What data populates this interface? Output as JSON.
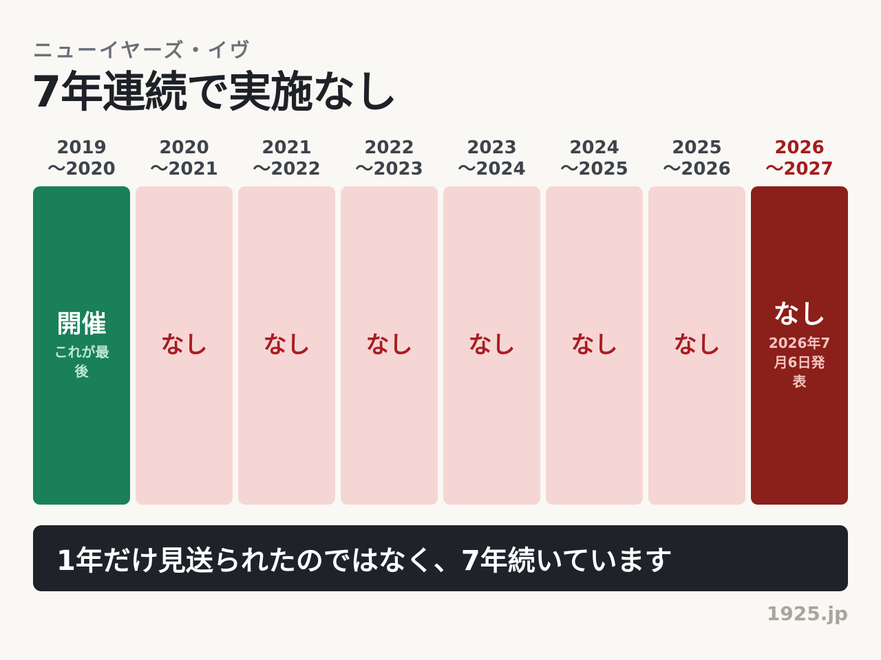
{
  "header": {
    "subtitle": "ニューイヤーズ・イヴ",
    "title": "7年連続で実施なし"
  },
  "colors": {
    "background": "#f9f8f4",
    "held": "#19805a",
    "skipped": "#f6d6d5",
    "skipped_text": "#a71d23",
    "current": "#8b1f1a",
    "banner": "#1f2229"
  },
  "timeline": [
    {
      "year_start": "2019",
      "year_end": "〜2020",
      "status": "開催",
      "note": "これが最後",
      "kind": "held"
    },
    {
      "year_start": "2020",
      "year_end": "〜2021",
      "status": "なし",
      "note": "",
      "kind": "skipped"
    },
    {
      "year_start": "2021",
      "year_end": "〜2022",
      "status": "なし",
      "note": "",
      "kind": "skipped"
    },
    {
      "year_start": "2022",
      "year_end": "〜2023",
      "status": "なし",
      "note": "",
      "kind": "skipped"
    },
    {
      "year_start": "2023",
      "year_end": "〜2024",
      "status": "なし",
      "note": "",
      "kind": "skipped"
    },
    {
      "year_start": "2024",
      "year_end": "〜2025",
      "status": "なし",
      "note": "",
      "kind": "skipped"
    },
    {
      "year_start": "2025",
      "year_end": "〜2026",
      "status": "なし",
      "note": "",
      "kind": "skipped"
    },
    {
      "year_start": "2026",
      "year_end": "〜2027",
      "status": "なし",
      "note": "2026年7月6日発表",
      "kind": "current"
    }
  ],
  "banner": {
    "text": "1年だけ見送られたのではなく、7年続いています"
  },
  "footer": {
    "source": "1925.jp"
  }
}
